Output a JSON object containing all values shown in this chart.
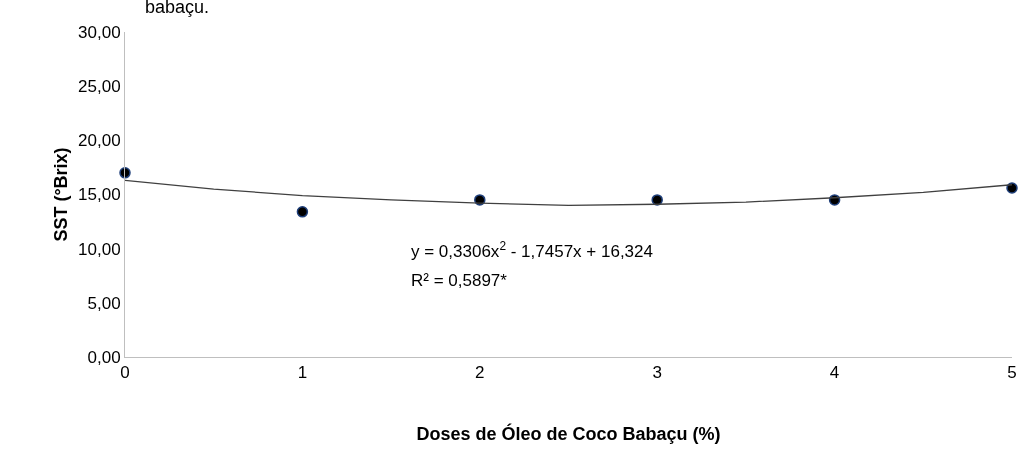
{
  "chart_data": {
    "type": "scatter",
    "title": "babaçu.",
    "xlabel": "Doses de Óleo de Coco Babaçu (%)",
    "ylabel": "SST (°Brix)",
    "x": [
      0,
      1,
      2,
      3,
      4,
      5
    ],
    "series": [
      {
        "color": "#000000",
        "values": [
          17.0,
          13.4,
          14.5,
          14.5,
          14.5,
          15.6
        ],
        "marker": "circle"
      },
      {
        "type": "line",
        "color": "#404040",
        "x": [
          0,
          0.5,
          1,
          1.5,
          2,
          2.5,
          3,
          3.5,
          4,
          4.5,
          5
        ],
        "values": [
          16.3,
          15.5,
          14.9,
          14.5,
          14.2,
          14.0,
          14.1,
          14.3,
          14.7,
          15.2,
          15.9
        ],
        "marker": "none",
        "line_style": "solid"
      }
    ],
    "xlim": [
      0,
      5
    ],
    "xticks": [
      0,
      1,
      2,
      3,
      4,
      5
    ],
    "ylim": [
      0,
      30
    ],
    "yticks": [
      {
        "value": 0,
        "label": "0,00"
      },
      {
        "value": 5,
        "label": "5,00"
      },
      {
        "value": 10,
        "label": "10,00"
      },
      {
        "value": 15,
        "label": "15,00"
      },
      {
        "value": 20,
        "label": "20,00"
      },
      {
        "value": 25,
        "label": "25,00"
      },
      {
        "value": 30,
        "label": "30,00"
      }
    ],
    "annotations": [
      "y = 0,3306x$^{2}$ - 1,7457x + 16,324",
      "R² = 0,5897*"
    ]
  }
}
